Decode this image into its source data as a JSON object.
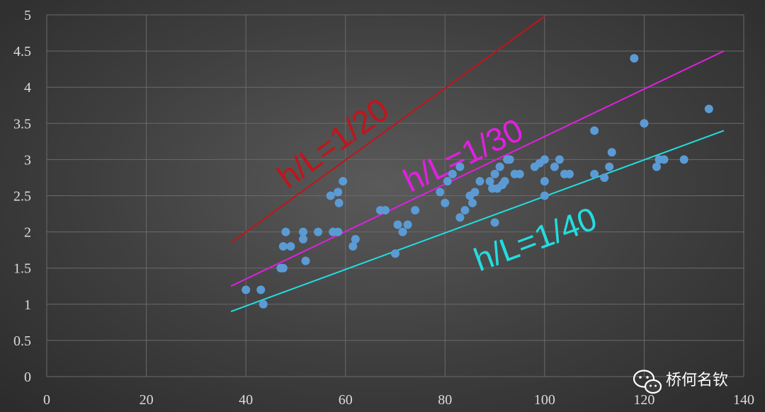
{
  "chart_data": {
    "type": "scatter",
    "title": "",
    "xlabel": "",
    "ylabel": "",
    "xlim": [
      0,
      140
    ],
    "ylim": [
      0,
      5
    ],
    "x_ticks": [
      "0",
      "20",
      "40",
      "60",
      "80",
      "100",
      "120",
      "140"
    ],
    "y_ticks": [
      "0",
      "0.5",
      "1",
      "1.5",
      "2",
      "2.5",
      "3",
      "3.5",
      "4",
      "4.5",
      "5"
    ],
    "x_tick_values": [
      0,
      20,
      40,
      60,
      80,
      100,
      120,
      140
    ],
    "y_tick_values": [
      0,
      0.5,
      1,
      1.5,
      2,
      2.5,
      3,
      3.5,
      4,
      4.5,
      5
    ],
    "grid": true,
    "point_color": "#5b9bd5",
    "points": [
      [
        40,
        1.2
      ],
      [
        43,
        1.2
      ],
      [
        43.5,
        1.0
      ],
      [
        47,
        1.5
      ],
      [
        47.5,
        1.5
      ],
      [
        47.5,
        1.8
      ],
      [
        48,
        2.0
      ],
      [
        49,
        1.8
      ],
      [
        51.5,
        2.0
      ],
      [
        51.5,
        1.9
      ],
      [
        52,
        1.6
      ],
      [
        54.5,
        2.0
      ],
      [
        57,
        2.5
      ],
      [
        57.5,
        2.0
      ],
      [
        58.5,
        2.0
      ],
      [
        58.5,
        2.55
      ],
      [
        58.7,
        2.4
      ],
      [
        59.5,
        2.7
      ],
      [
        61.5,
        1.8
      ],
      [
        62,
        1.9
      ],
      [
        67,
        2.3
      ],
      [
        68,
        2.3
      ],
      [
        70,
        1.7
      ],
      [
        70.5,
        2.1
      ],
      [
        71.5,
        2.0
      ],
      [
        72.5,
        2.1
      ],
      [
        74,
        2.3
      ],
      [
        79,
        2.55
      ],
      [
        80,
        2.4
      ],
      [
        80.5,
        2.7
      ],
      [
        81.5,
        2.8
      ],
      [
        83,
        2.9
      ],
      [
        83,
        2.2
      ],
      [
        84,
        2.3
      ],
      [
        85,
        2.5
      ],
      [
        85.5,
        2.4
      ],
      [
        86,
        2.55
      ],
      [
        87,
        2.7
      ],
      [
        89,
        2.7
      ],
      [
        89.5,
        2.6
      ],
      [
        90,
        2.8
      ],
      [
        90,
        2.13
      ],
      [
        90.5,
        2.6
      ],
      [
        91,
        2.9
      ],
      [
        91.5,
        2.65
      ],
      [
        92,
        2.7
      ],
      [
        92.5,
        3.0
      ],
      [
        93,
        3.0
      ],
      [
        94,
        2.8
      ],
      [
        95,
        2.8
      ],
      [
        98,
        2.9
      ],
      [
        99,
        2.95
      ],
      [
        100,
        3.0
      ],
      [
        100,
        2.7
      ],
      [
        100,
        2.5
      ],
      [
        102,
        2.9
      ],
      [
        103,
        3.0
      ],
      [
        104,
        2.8
      ],
      [
        105,
        2.8
      ],
      [
        110,
        3.4
      ],
      [
        110,
        2.8
      ],
      [
        112,
        2.75
      ],
      [
        113,
        2.9
      ],
      [
        113.5,
        3.1
      ],
      [
        118,
        4.4
      ],
      [
        120,
        3.5
      ],
      [
        122.5,
        2.9
      ],
      [
        123,
        3.0
      ],
      [
        124,
        3.0
      ],
      [
        128,
        3.0
      ],
      [
        133,
        3.7
      ]
    ],
    "lines": [
      {
        "label": "h/L=1/20",
        "color": "#c0151b",
        "x": [
          37,
          100
        ],
        "y": [
          1.85,
          4.98
        ]
      },
      {
        "label": "h/L=1/30",
        "color": "#e020e0",
        "x": [
          37,
          136
        ],
        "y": [
          1.25,
          4.5
        ]
      },
      {
        "label": "h/L=1/40",
        "color": "#22dde0",
        "x": [
          37,
          136
        ],
        "y": [
          0.9,
          3.4
        ]
      }
    ]
  },
  "watermark": {
    "text": "桥何名钦",
    "icon": "wechat-icon",
    "color": "#ffffff"
  }
}
